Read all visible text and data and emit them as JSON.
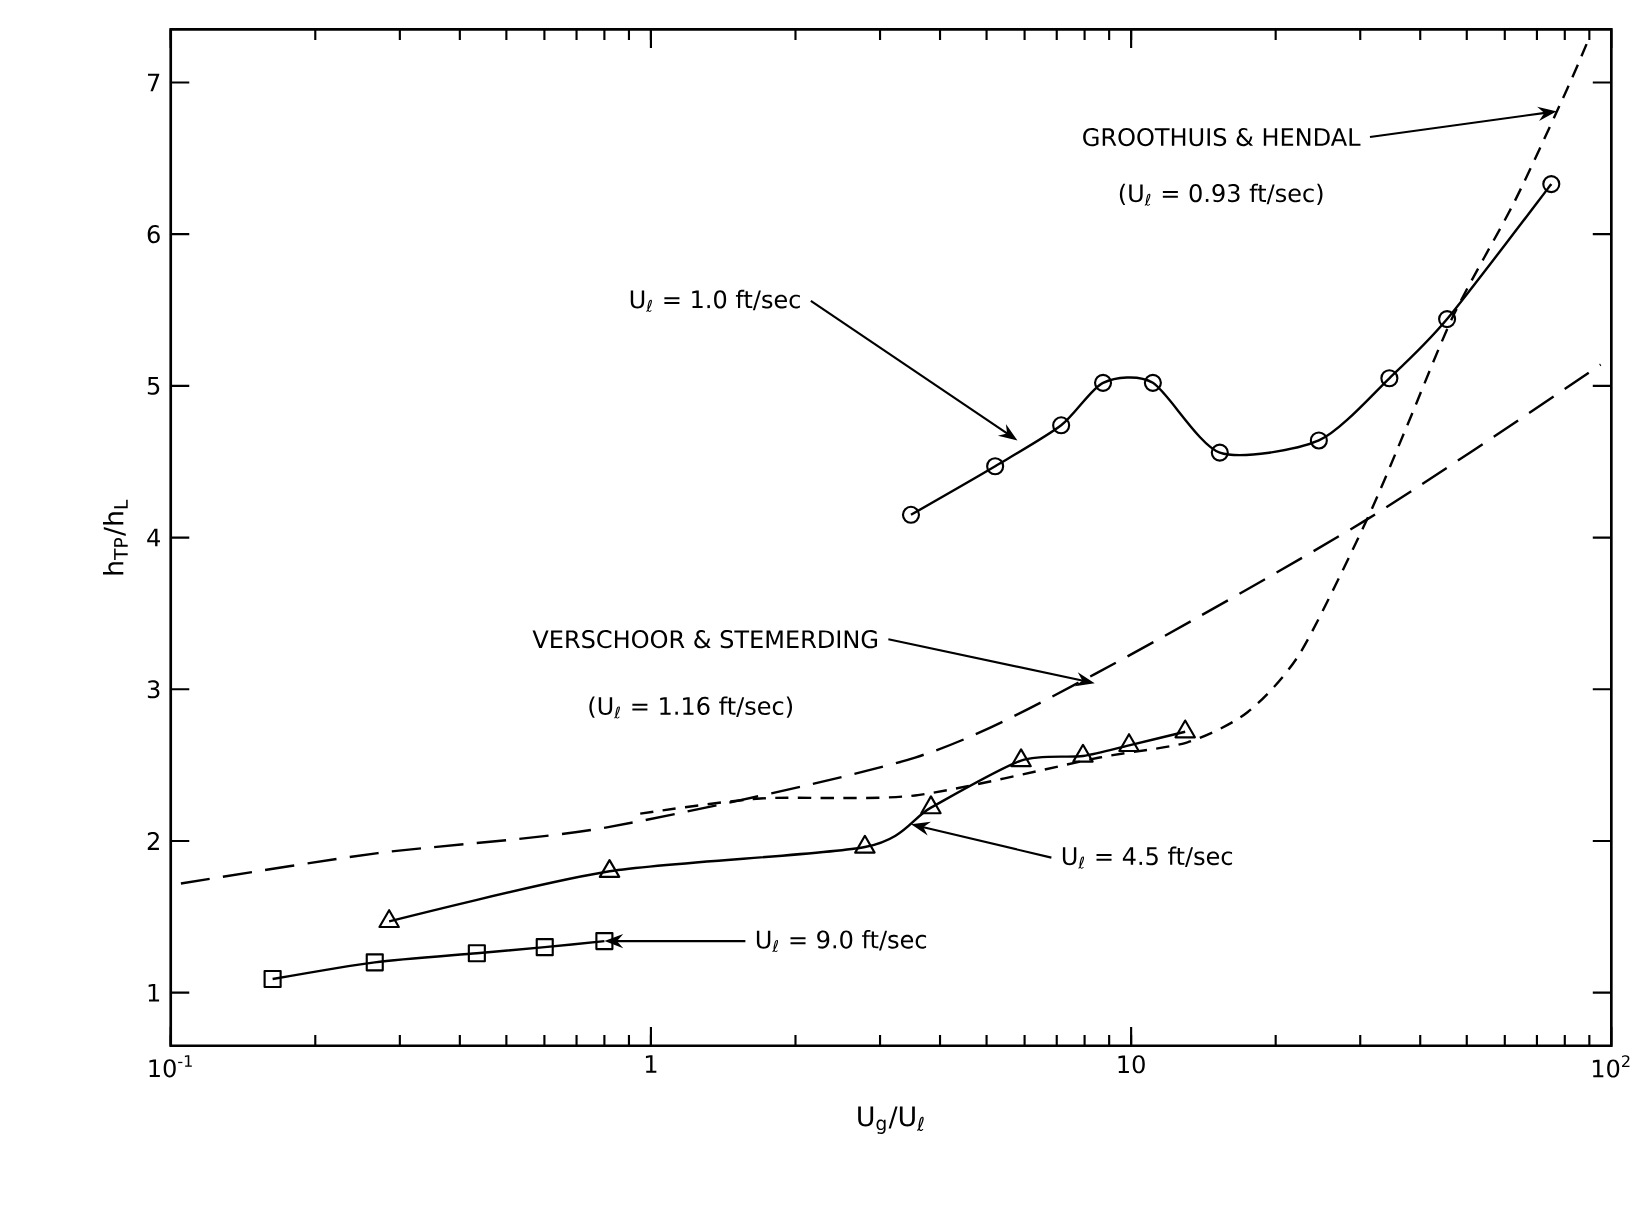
{
  "chart_data": {
    "type": "line",
    "xlabel": "U$_{g}$/U$_{ℓ}$",
    "ylabel": "h$_{TP}$/h$_{L}$",
    "log": "x",
    "xlim": [
      0.1,
      100
    ],
    "ylim": [
      0.65,
      7.35
    ],
    "xticks": [
      {
        "value": 0.1,
        "label": "10$^{-1}$"
      },
      1,
      10,
      {
        "value": 100,
        "label": "10$^{2}$"
      }
    ],
    "yticks": [
      1,
      2,
      3,
      4,
      5,
      6,
      7
    ],
    "series": [
      {
        "color": "#000000",
        "marker": "circle",
        "line_style": "solid",
        "x": [
          3.48,
          5.21,
          7.15,
          8.74,
          11.1,
          15.3,
          24.6,
          34.5,
          45.5,
          75.0
        ],
        "values": [
          4.15,
          4.47,
          4.74,
          5.02,
          5.02,
          4.56,
          4.64,
          5.05,
          5.44,
          6.33
        ]
      },
      {
        "color": "#000000",
        "marker": "triangle",
        "line_style": "solid",
        "x": [
          0.285,
          0.82,
          2.79,
          3.83,
          5.9,
          7.94,
          9.9,
          12.96
        ],
        "values": [
          1.47,
          1.8,
          1.96,
          2.22,
          2.53,
          2.56,
          2.63,
          2.72
        ]
      },
      {
        "color": "#000000",
        "marker": "square",
        "line_style": "solid",
        "x": [
          0.163,
          0.266,
          0.434,
          0.601,
          0.8
        ],
        "values": [
          1.09,
          1.2,
          1.26,
          1.3,
          1.34
        ]
      },
      {
        "color": "#000000",
        "marker": "none",
        "line_style": "dashed",
        "x": [
          0.95,
          1.69,
          3.55,
          8.6,
          13.1,
          17.5,
          22.5,
          31,
          37.6,
          47,
          63,
          81,
          89
        ],
        "values": [
          2.18,
          2.28,
          2.3,
          2.55,
          2.65,
          2.85,
          3.24,
          4.12,
          4.74,
          5.47,
          6.22,
          6.96,
          7.26
        ]
      },
      {
        "color": "#000000",
        "marker": "none",
        "line_style": "dashed",
        "x": [
          0.105,
          0.27,
          0.81,
          3.55,
          8.4,
          31,
          95
        ],
        "values": [
          1.72,
          1.92,
          2.09,
          2.55,
          3.1,
          4.12,
          5.14
        ]
      }
    ],
    "annotations": [
      {
        "text": "U$_{ℓ}$ = 1.0 ft/sec",
        "x": 5.8,
        "y": 4.64
      },
      {
        "text": "GROOTHUIS & HENDAL",
        "x": 77,
        "y": 6.81
      },
      "(U$_{ℓ}$ = 0.93 ft/sec)",
      {
        "text": "VERSCHOOR & STEMERDING",
        "x": 8.4,
        "y": 3.04
      },
      "(U$_{ℓ}$ = 1.16 ft/sec)",
      {
        "text": "U$_{ℓ}$ = 4.5 ft/sec",
        "x": 3.48,
        "y": 2.11
      },
      {
        "text": "U$_{ℓ}$ = 9.0 ft/sec",
        "x": 0.8,
        "y": 1.34
      }
    ]
  }
}
